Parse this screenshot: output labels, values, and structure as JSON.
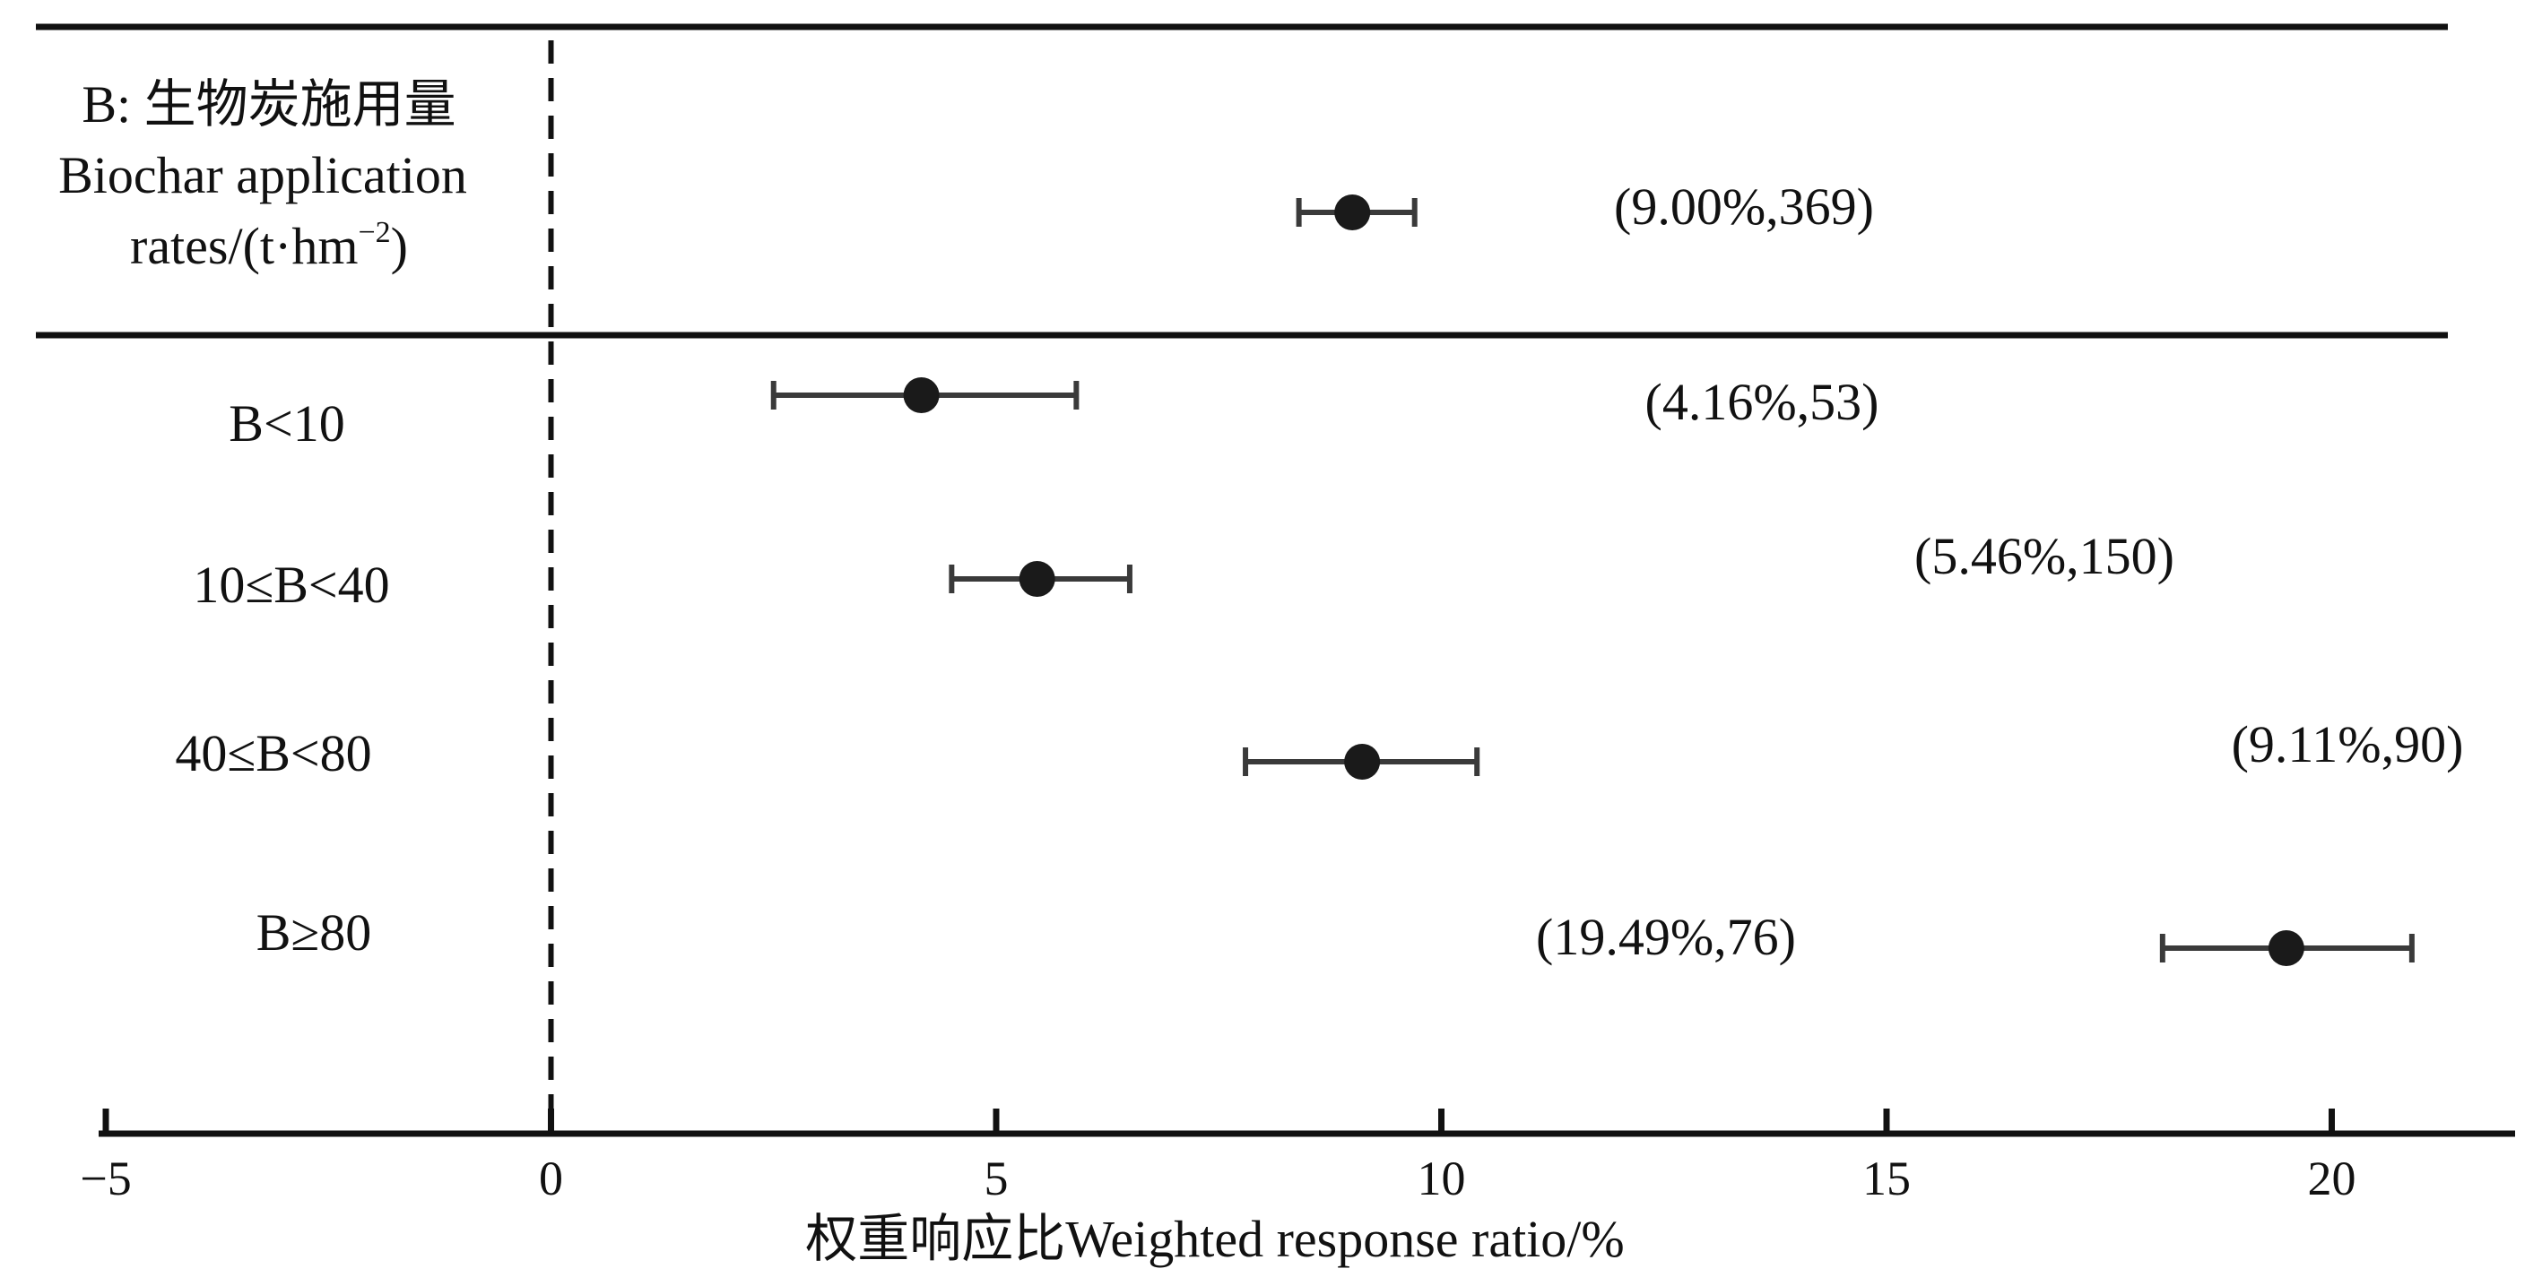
{
  "chart_data": {
    "type": "scatter",
    "subtype": "forest-plot",
    "group_header": {
      "line1": "B: 生物炭施用量",
      "line2": "Biochar application",
      "line3_base": "rates/(t·hm",
      "line3_sup": "−2",
      "line3_end": ")"
    },
    "xlabel": "权重响应比Weighted response ratio/%",
    "xlim": [
      -5,
      21
    ],
    "xticks": [
      {
        "value": -5,
        "label": "−5"
      },
      {
        "value": 0,
        "label": "0"
      },
      {
        "value": 5,
        "label": "5"
      },
      {
        "value": 10,
        "label": "10"
      },
      {
        "value": 15,
        "label": "15"
      },
      {
        "value": 20,
        "label": "20"
      }
    ],
    "reference_line": 0,
    "overall": {
      "value": 9.0,
      "ci": [
        8.4,
        9.7
      ],
      "annotation": "(9.00%,369)"
    },
    "categories": [
      {
        "label": "B<10",
        "value": 4.16,
        "ci": [
          2.5,
          5.9
        ],
        "annotation": "(4.16%,53)"
      },
      {
        "label": "10≤B<40",
        "value": 5.46,
        "ci": [
          4.5,
          6.5
        ],
        "annotation": "(5.46%,150)"
      },
      {
        "label": "40≤B<80",
        "value": 9.11,
        "ci": [
          7.8,
          10.4
        ],
        "annotation": "(9.11%,90)"
      },
      {
        "label": "B≥80",
        "value": 19.49,
        "ci": [
          18.1,
          20.9
        ],
        "annotation": "(19.49%,76)"
      }
    ],
    "colors": {
      "marker": "#1a1a1a",
      "errorbar": "#3a3a3a",
      "axis": "#111111"
    }
  }
}
